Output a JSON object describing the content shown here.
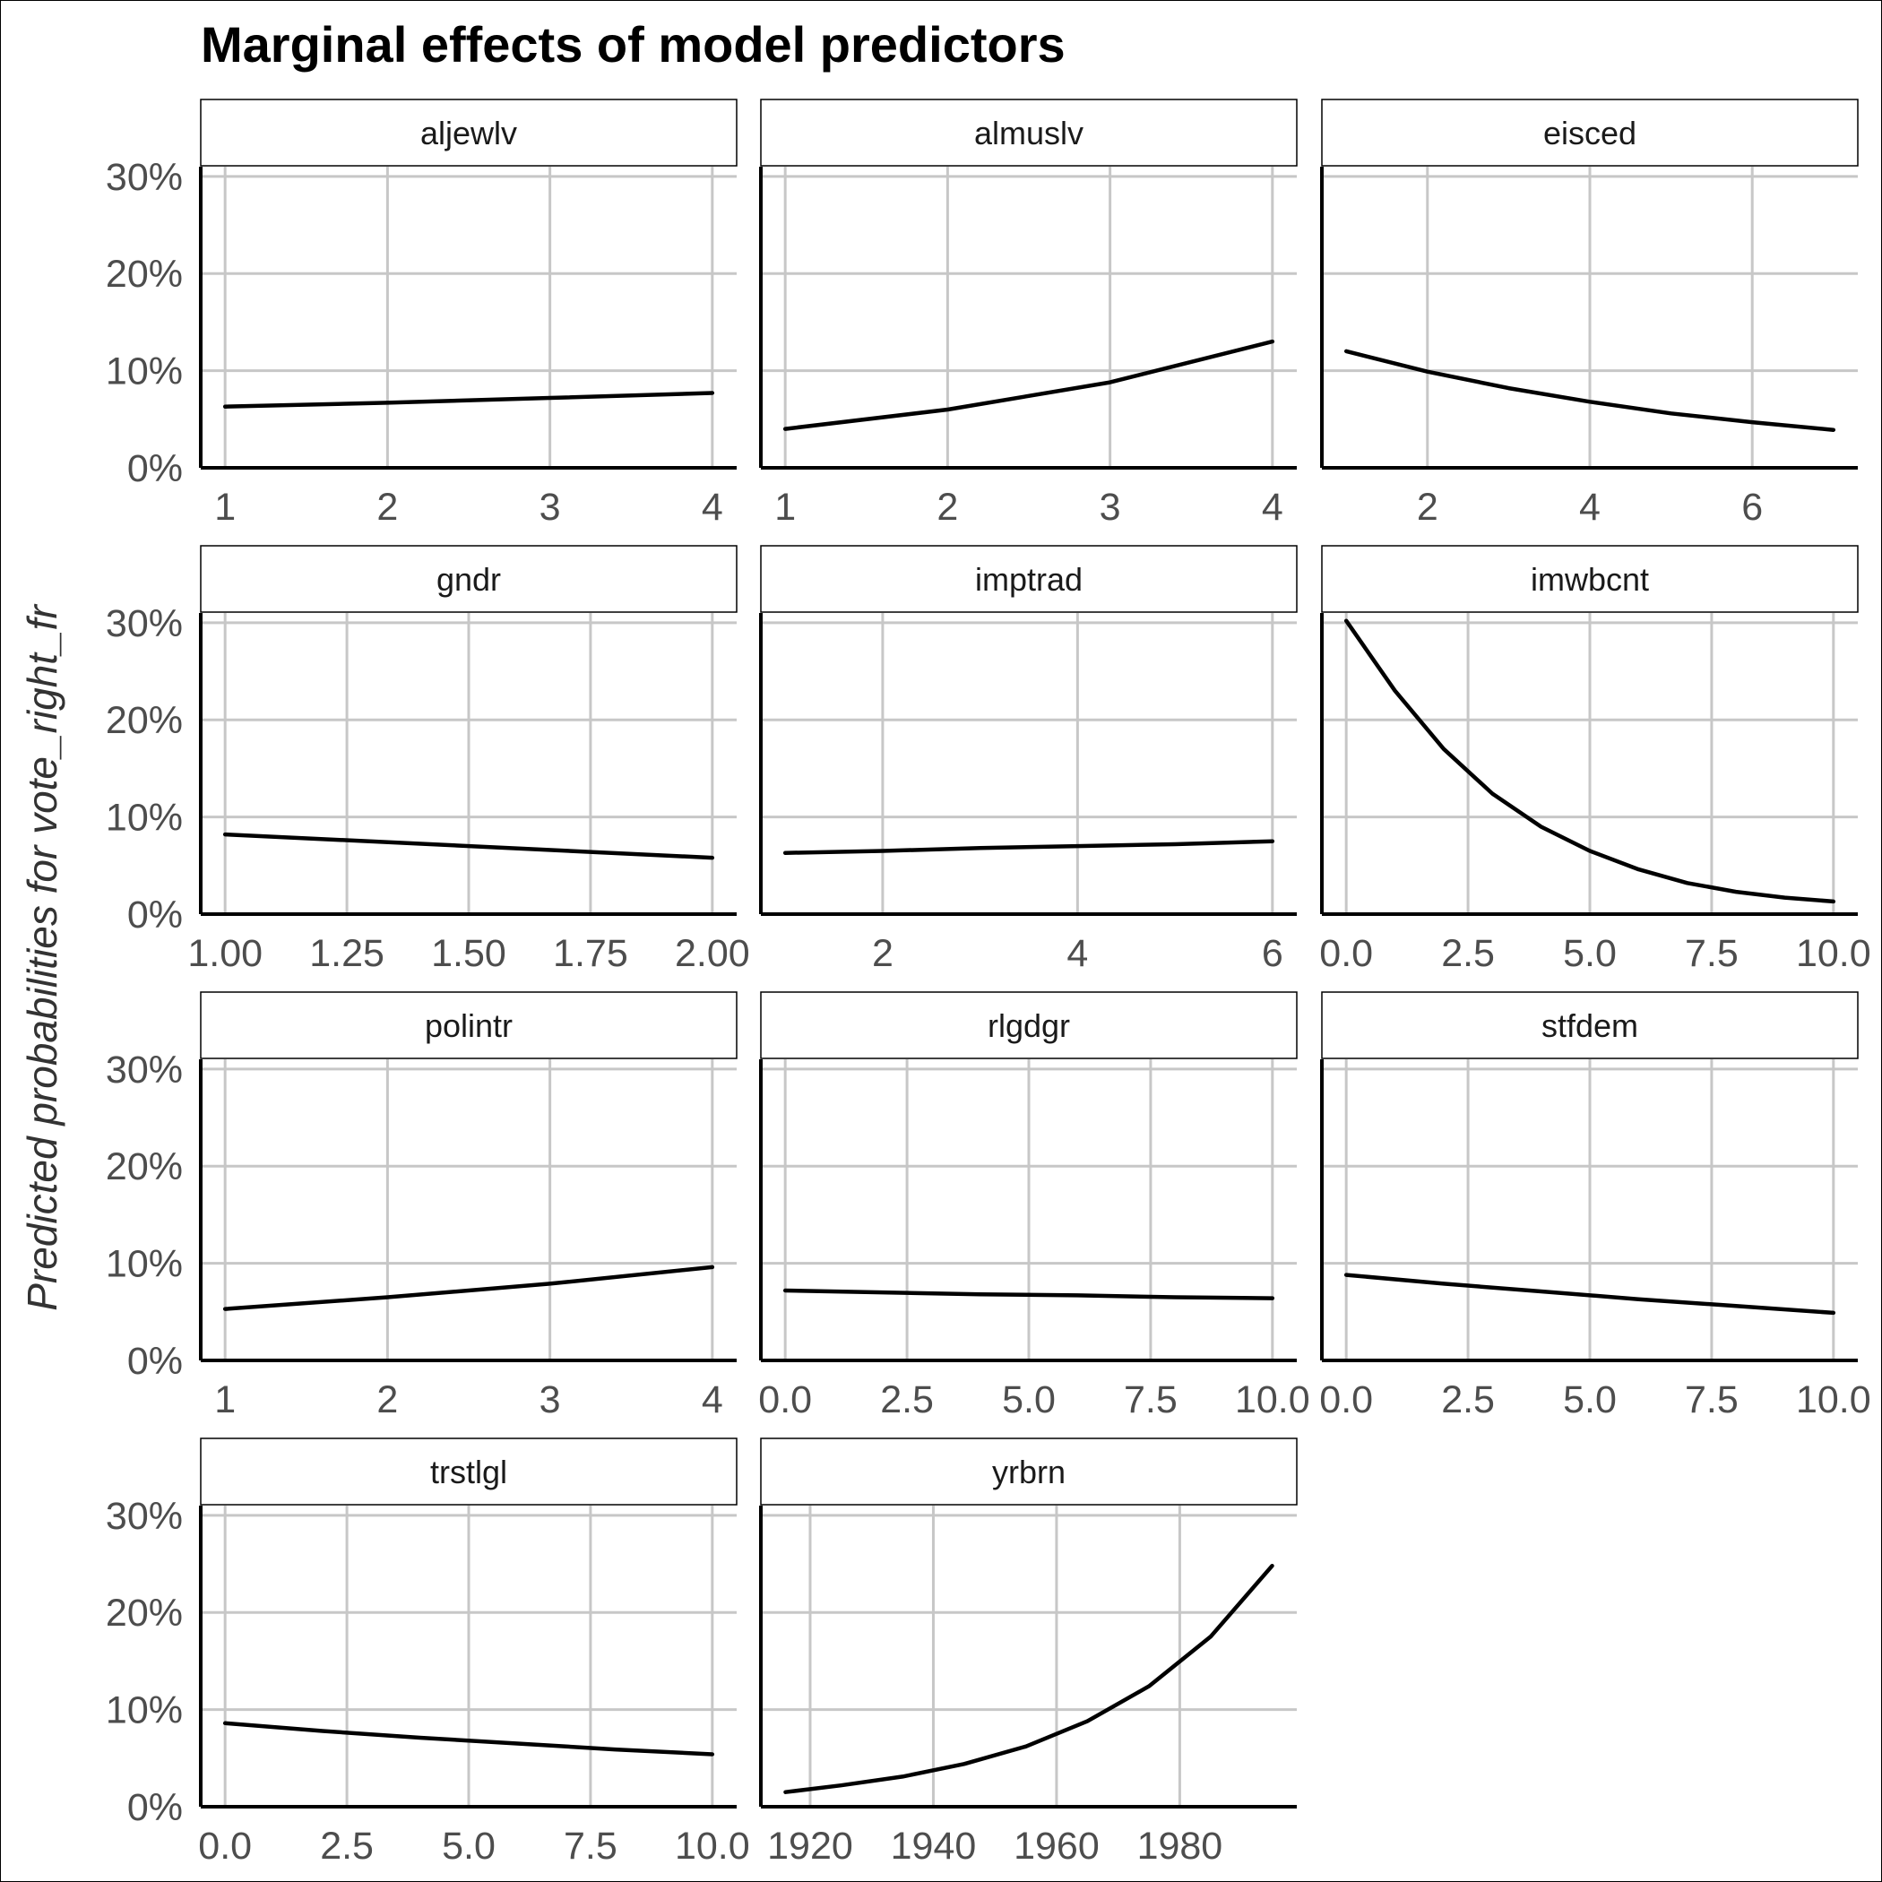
{
  "chart_data": {
    "type": "line",
    "title": "Marginal effects of model predictors",
    "ylabel": "Predicted probabilities for vote_right_fr",
    "y_axis": {
      "ylim": [
        0,
        0.31
      ],
      "ticks": [
        0,
        0.1,
        0.2,
        0.3
      ],
      "tick_labels": [
        "0%",
        "10%",
        "20%",
        "30%"
      ]
    },
    "grid": true,
    "facets": [
      {
        "name": "aljewlv",
        "xlim": [
          0.85,
          4.15
        ],
        "x_ticks": [
          1,
          2,
          3,
          4
        ],
        "x_tick_labels": [
          "1",
          "2",
          "3",
          "4"
        ],
        "x": [
          1,
          2,
          3,
          4
        ],
        "y": [
          0.063,
          0.067,
          0.072,
          0.077
        ]
      },
      {
        "name": "almuslv",
        "xlim": [
          0.85,
          4.15
        ],
        "x_ticks": [
          1,
          2,
          3,
          4
        ],
        "x_tick_labels": [
          "1",
          "2",
          "3",
          "4"
        ],
        "x": [
          1,
          2,
          3,
          4
        ],
        "y": [
          0.04,
          0.06,
          0.088,
          0.13
        ]
      },
      {
        "name": "eisced",
        "xlim": [
          0.7,
          7.3
        ],
        "x_ticks": [
          2,
          4,
          6
        ],
        "x_tick_labels": [
          "2",
          "4",
          "6"
        ],
        "x": [
          1,
          2,
          3,
          4,
          5,
          6,
          7
        ],
        "y": [
          0.12,
          0.099,
          0.082,
          0.068,
          0.056,
          0.047,
          0.039
        ]
      },
      {
        "name": "gndr",
        "xlim": [
          0.95,
          2.05
        ],
        "x_ticks": [
          1,
          1.25,
          1.5,
          1.75,
          2
        ],
        "x_tick_labels": [
          "1.00",
          "1.25",
          "1.50",
          "1.75",
          "2.00"
        ],
        "x": [
          1,
          2
        ],
        "y": [
          0.082,
          0.058
        ]
      },
      {
        "name": "imptrad",
        "xlim": [
          0.75,
          6.25
        ],
        "x_ticks": [
          2,
          4,
          6
        ],
        "x_tick_labels": [
          "2",
          "4",
          "6"
        ],
        "x": [
          1,
          2,
          3,
          4,
          5,
          6
        ],
        "y": [
          0.063,
          0.065,
          0.068,
          0.07,
          0.072,
          0.075
        ]
      },
      {
        "name": "imwbcnt",
        "xlim": [
          -0.5,
          10.5
        ],
        "x_ticks": [
          0,
          2.5,
          5,
          7.5,
          10
        ],
        "x_tick_labels": [
          "0.0",
          "2.5",
          "5.0",
          "7.5",
          "10.0"
        ],
        "x": [
          0,
          1,
          2,
          3,
          4,
          5,
          6,
          7,
          8,
          9,
          10
        ],
        "y": [
          0.302,
          0.23,
          0.17,
          0.124,
          0.09,
          0.065,
          0.046,
          0.032,
          0.023,
          0.017,
          0.013
        ]
      },
      {
        "name": "polintr",
        "xlim": [
          0.85,
          4.15
        ],
        "x_ticks": [
          1,
          2,
          3,
          4
        ],
        "x_tick_labels": [
          "1",
          "2",
          "3",
          "4"
        ],
        "x": [
          1,
          2,
          3,
          4
        ],
        "y": [
          0.053,
          0.065,
          0.079,
          0.096
        ]
      },
      {
        "name": "rlgdgr",
        "xlim": [
          -0.5,
          10.5
        ],
        "x_ticks": [
          0,
          2.5,
          5,
          7.5,
          10
        ],
        "x_tick_labels": [
          "0.0",
          "2.5",
          "5.0",
          "7.5",
          "10.0"
        ],
        "x": [
          0,
          2,
          4,
          6,
          8,
          10
        ],
        "y": [
          0.072,
          0.07,
          0.068,
          0.067,
          0.065,
          0.064
        ]
      },
      {
        "name": "stfdem",
        "xlim": [
          -0.5,
          10.5
        ],
        "x_ticks": [
          0,
          2.5,
          5,
          7.5,
          10
        ],
        "x_tick_labels": [
          "0.0",
          "2.5",
          "5.0",
          "7.5",
          "10.0"
        ],
        "x": [
          0,
          2,
          4,
          6,
          8,
          10
        ],
        "y": [
          0.088,
          0.079,
          0.071,
          0.063,
          0.056,
          0.049
        ]
      },
      {
        "name": "trstlgl",
        "xlim": [
          -0.5,
          10.5
        ],
        "x_ticks": [
          0,
          2.5,
          5,
          7.5,
          10
        ],
        "x_tick_labels": [
          "0.0",
          "2.5",
          "5.0",
          "7.5",
          "10.0"
        ],
        "x": [
          0,
          2,
          4,
          6,
          8,
          10
        ],
        "y": [
          0.086,
          0.078,
          0.071,
          0.065,
          0.059,
          0.054
        ]
      },
      {
        "name": "yrbrn",
        "xlim": [
          1912,
          1999
        ],
        "x_ticks": [
          1920,
          1940,
          1960,
          1980
        ],
        "x_tick_labels": [
          "1920",
          "1940",
          "1960",
          "1980"
        ],
        "x": [
          1916,
          1925,
          1935,
          1945,
          1955,
          1965,
          1975,
          1985,
          1995
        ],
        "y": [
          0.015,
          0.022,
          0.031,
          0.044,
          0.062,
          0.088,
          0.124,
          0.175,
          0.248
        ]
      }
    ]
  }
}
